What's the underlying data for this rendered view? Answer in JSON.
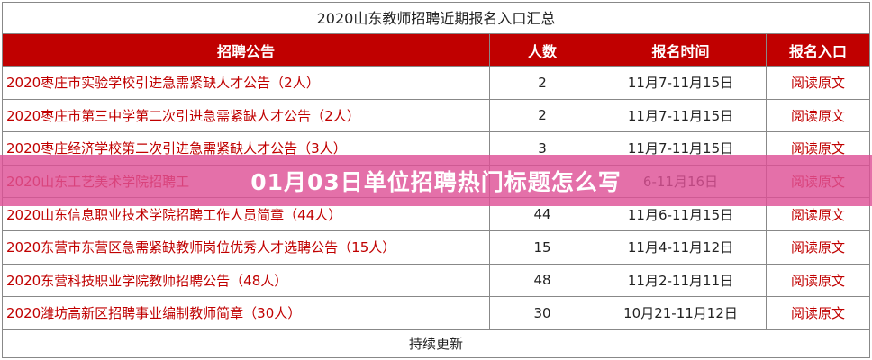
{
  "table": {
    "title": "2020山东教师招聘近期报名入口汇总",
    "headers": [
      "招聘公告",
      "人数",
      "报名时间",
      "报名入口"
    ],
    "rows": [
      {
        "notice": "2020枣庄市实验学校引进急需紧缺人才公告（2人）",
        "count": "2",
        "time": "11月7-11月15日",
        "link": "阅读原文"
      },
      {
        "notice": "2020枣庄市第三中学第二次引进急需紧缺人才公告（2人）",
        "count": "2",
        "time": "11月7-11月15日",
        "link": "阅读原文"
      },
      {
        "notice": "2020枣庄经济学校第二次引进急需紧缺人才公告（3人）",
        "count": "3",
        "time": "11月7-11月15日",
        "link": "阅读原文"
      },
      {
        "notice": "2020山东工艺美术学院招聘工",
        "count": "",
        "time": "6-11月16日",
        "link": "阅读原文"
      },
      {
        "notice": "2020山东信息职业技术学院招聘工作人员简章（44人）",
        "count": "44",
        "time": "11月6-11月15日",
        "link": "阅读原文"
      },
      {
        "notice": "2020东营市东营区急需紧缺教师岗位优秀人才选聘公告（15人）",
        "count": "15",
        "time": "11月4-11月12日",
        "link": "阅读原文"
      },
      {
        "notice": "2020东营科技职业学院教师招聘公告（48人）",
        "count": "48",
        "time": "11月2-11月11日",
        "link": "阅读原文"
      },
      {
        "notice": "2020潍坊高新区招聘事业编制教师简章（30人）",
        "count": "30",
        "time": "10月21-11月12日",
        "link": "阅读原文"
      }
    ],
    "footer": "持续更新"
  },
  "overlay": {
    "text": "01月03日单位招聘热门标题怎么写"
  },
  "colors": {
    "header_bg": "#c00000",
    "link": "#c00000",
    "overlay": "#de5096"
  }
}
